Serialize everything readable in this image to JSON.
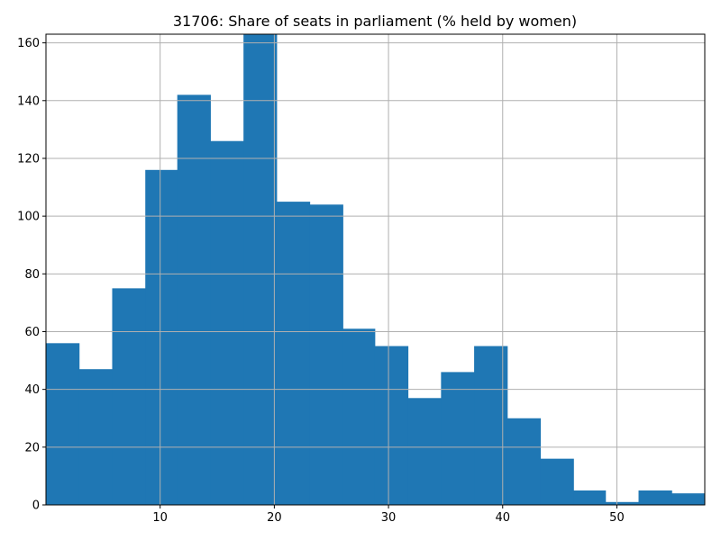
{
  "chart_data": {
    "type": "bar",
    "title": "31706: Share of seats in parliament (% held by women)",
    "xlabel": "",
    "ylabel": "",
    "xlim": [
      0.0,
      57.7
    ],
    "ylim": [
      0,
      163
    ],
    "bin_edges": [
      0.0,
      2.9,
      5.8,
      8.7,
      11.5,
      14.4,
      17.3,
      20.2,
      23.1,
      26.0,
      28.8,
      31.7,
      34.6,
      37.5,
      40.4,
      43.3,
      46.2,
      49.0,
      51.9,
      54.8,
      57.7
    ],
    "values": [
      56,
      47,
      75,
      116,
      142,
      126,
      163,
      105,
      104,
      61,
      55,
      37,
      46,
      55,
      30,
      16,
      5,
      1,
      5,
      4
    ],
    "x_ticks": [
      10,
      20,
      30,
      40,
      50
    ],
    "y_ticks": [
      0,
      20,
      40,
      60,
      80,
      100,
      120,
      140,
      160
    ],
    "grid": true,
    "color": "#1f77b4"
  }
}
